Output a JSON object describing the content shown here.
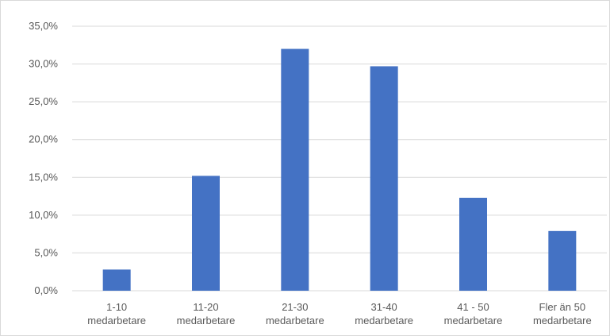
{
  "chart_data": {
    "type": "bar",
    "categories": [
      [
        "1-10",
        "medarbetare"
      ],
      [
        "11-20",
        "medarbetare"
      ],
      [
        "21-30",
        "medarbetare"
      ],
      [
        "31-40",
        "medarbetare"
      ],
      [
        "41 - 50",
        "medarbetare"
      ],
      [
        "Fler än 50",
        "medarbetare"
      ]
    ],
    "values": [
      2.8,
      15.2,
      32.0,
      29.7,
      12.3,
      7.9
    ],
    "ylim": [
      0,
      35
    ],
    "yticks": [
      0,
      5,
      10,
      15,
      20,
      25,
      30,
      35
    ],
    "ytick_labels": [
      "0,0%",
      "5,0%",
      "10,0%",
      "15,0%",
      "20,0%",
      "25,0%",
      "30,0%",
      "35,0%"
    ],
    "grid": true,
    "legend": false,
    "title": "",
    "xlabel": "",
    "ylabel": "",
    "bar_color": "#4472c4",
    "grid_color": "#d9d9d9",
    "text_color": "#595959"
  }
}
